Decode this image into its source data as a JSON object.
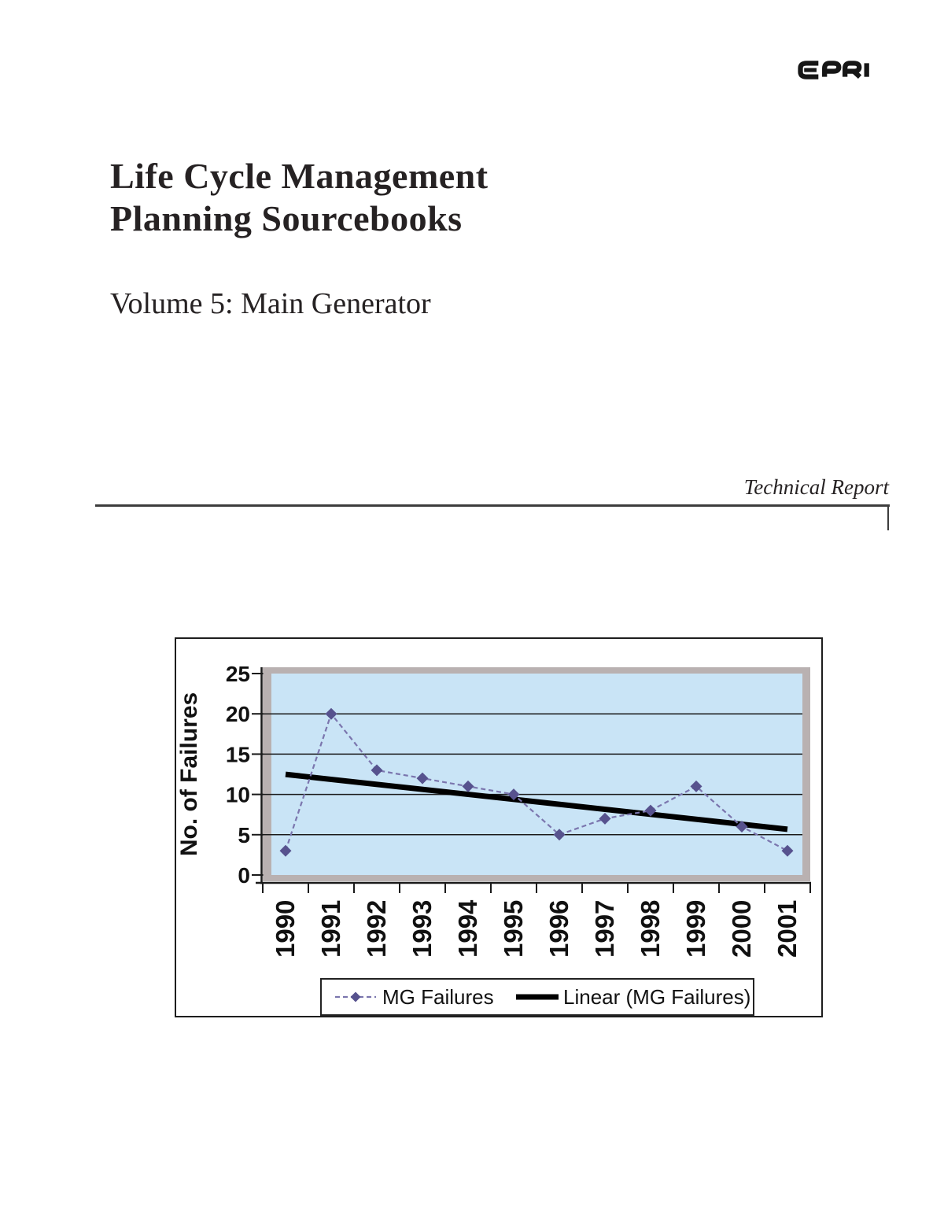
{
  "page": {
    "logo_text": "EPRI",
    "title_line1": "Life Cycle Management",
    "title_line2": "Planning Sourcebooks",
    "subtitle": "Volume 5: Main Generator",
    "report_type_label": "Technical Report"
  },
  "chart_data": {
    "type": "line",
    "title": "",
    "categories": [
      "1990",
      "1991",
      "1992",
      "1993",
      "1994",
      "1995",
      "1996",
      "1997",
      "1998",
      "1999",
      "2000",
      "2001"
    ],
    "series": [
      {
        "name": "MG Failures",
        "type": "line",
        "values": [
          3,
          20,
          13,
          12,
          11,
          10,
          5,
          7,
          8,
          11,
          6,
          3
        ],
        "marker": "diamond",
        "marker_color": "#57528e",
        "line_color": "#7b76ae",
        "line_style": "dashed"
      },
      {
        "name": "Linear (MG Failures)",
        "type": "linear_trendline",
        "source": "MG Failures",
        "color": "#000000"
      }
    ],
    "xlabel": "",
    "ylabel": "No. of Failures",
    "ylim": [
      0,
      25
    ],
    "ytick_step": 5,
    "grid": true,
    "legend_position": "bottom",
    "plot_bg_color": "#c9e4f6",
    "plot_frame_color": "#b9b1b1",
    "axis_color": "#1a1a1a"
  }
}
